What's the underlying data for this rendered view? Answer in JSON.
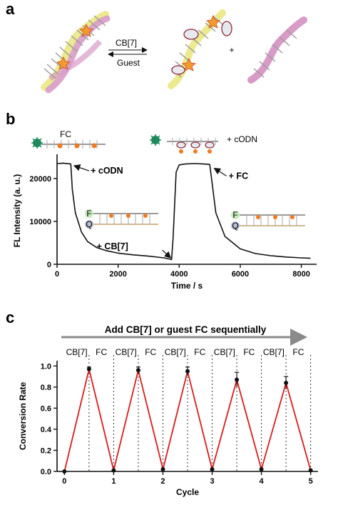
{
  "panels": {
    "a": "a",
    "b": "b",
    "c": "c"
  },
  "scheme_a": {
    "top_label": "CB[7]",
    "bottom_label": "Guest",
    "plus": "+"
  },
  "scheme_b": {
    "fc_label": "FC",
    "codn_label": "+ cODN",
    "f_label": "F",
    "q_label": "Q"
  },
  "cycle_arrow_text": "Add CB[7] or guest FC sequentially",
  "cycle_labels": [
    "CB[7]",
    "FC",
    "CB[7]",
    "FC",
    "CB[7]",
    "FC",
    "CB[7]",
    "FC",
    "CB[7]",
    "FC"
  ],
  "colors": {
    "trace": "#111111",
    "zigzag": "#d81b1b",
    "arrow_gray": "#8a8a8a",
    "dna_pink": "#d89bc7",
    "dna_yellow": "#ecea8e",
    "fluor_green": "#1f8a5a"
  },
  "chart_data": [
    {
      "type": "line",
      "title": "",
      "xlabel": "Time / s",
      "ylabel": "FL Intensity (a. u.)",
      "xlim": [
        0,
        8500
      ],
      "ylim": [
        0,
        25000
      ],
      "x_ticks": [
        0,
        2000,
        4000,
        6000,
        8000
      ],
      "y_ticks": [
        0,
        10000,
        20000
      ],
      "series": [
        {
          "x": [
            0,
            200,
            450,
            500,
            600,
            800,
            1000,
            1300,
            1600,
            2000,
            2500,
            3000,
            3500,
            3750,
            3800,
            3900,
            4000,
            4200,
            4500,
            4800,
            5000,
            5050,
            5200,
            5500,
            6000,
            6500,
            7000,
            7500,
            8000,
            8300
          ],
          "y": [
            23500,
            23600,
            23400,
            17500,
            12000,
            7500,
            5300,
            3900,
            3200,
            2600,
            2200,
            1900,
            1500,
            1100,
            6000,
            21500,
            23200,
            23400,
            23500,
            23400,
            23300,
            20500,
            12000,
            6500,
            3600,
            2500,
            2000,
            1700,
            1500,
            1400
          ]
        }
      ],
      "annotations": [
        "+ cODN",
        "+ CB[7]",
        "+ FC"
      ]
    },
    {
      "type": "line",
      "title": "",
      "xlabel": "Cycle",
      "ylabel": "Conversion Rate",
      "xlim": [
        -0.15,
        5.15
      ],
      "ylim": [
        0,
        1.05
      ],
      "x_ticks": [
        0,
        1,
        2,
        3,
        4,
        5
      ],
      "y_ticks": [
        0.0,
        0.2,
        0.4,
        0.6,
        0.8,
        1.0
      ],
      "series": [
        {
          "x": [
            0,
            0.5,
            1,
            1.5,
            2,
            2.5,
            3,
            3.5,
            4,
            4.5,
            5
          ],
          "y": [
            0.0,
            0.97,
            0.01,
            0.96,
            0.02,
            0.95,
            0.02,
            0.87,
            0.02,
            0.84,
            0.01
          ],
          "error": [
            0,
            0.02,
            0,
            0.03,
            0,
            0.04,
            0,
            0.07,
            0,
            0.06,
            0
          ]
        }
      ]
    }
  ]
}
